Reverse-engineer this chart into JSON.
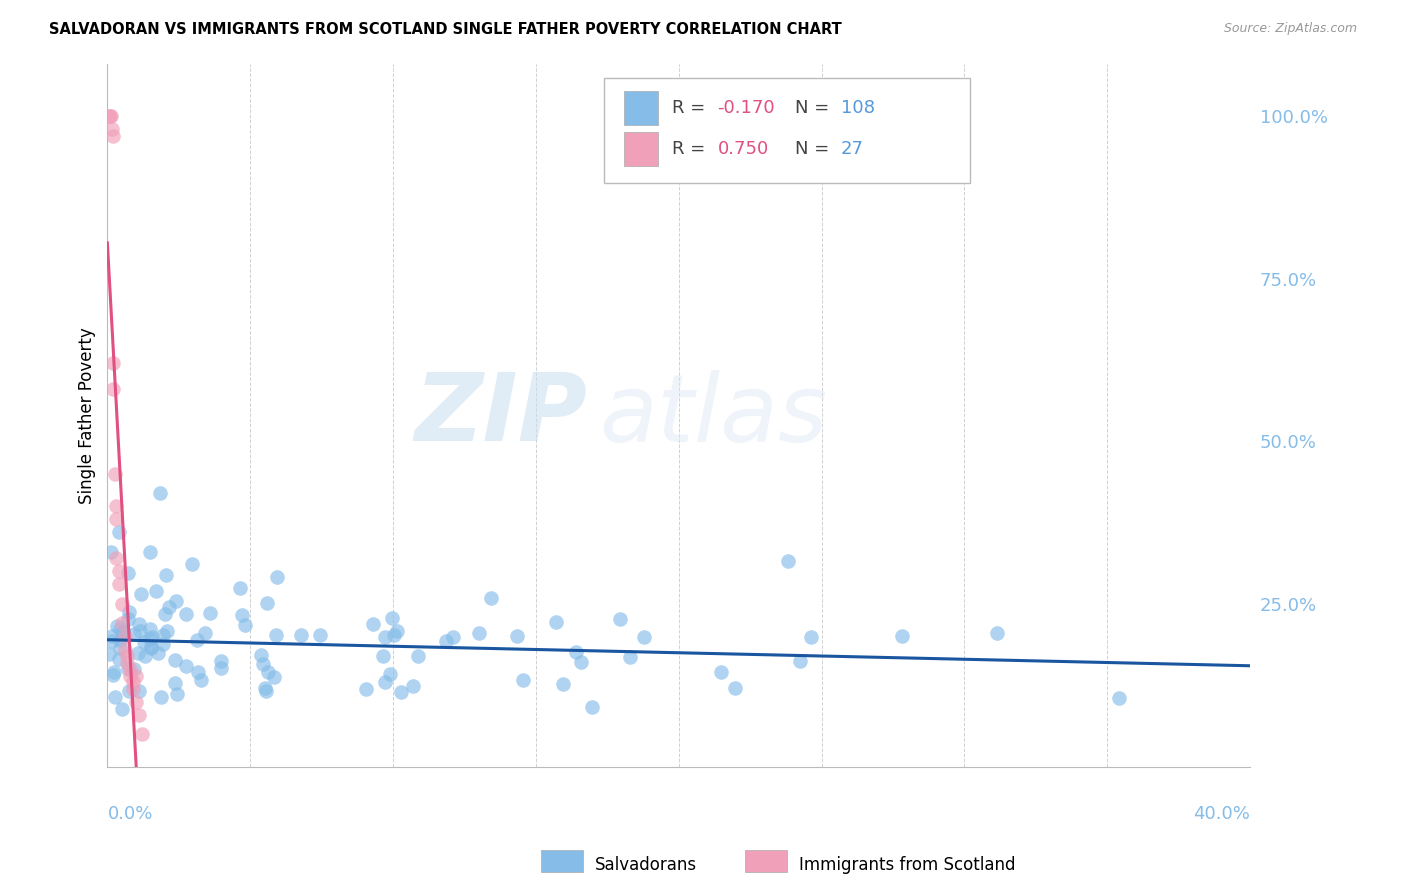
{
  "title": "SALVADORAN VS IMMIGRANTS FROM SCOTLAND SINGLE FATHER POVERTY CORRELATION CHART",
  "source": "Source: ZipAtlas.com",
  "ylabel": "Single Father Poverty",
  "yticks_right": [
    "100.0%",
    "75.0%",
    "50.0%",
    "25.0%"
  ],
  "yticks_right_vals": [
    1.0,
    0.75,
    0.5,
    0.25
  ],
  "blue_R": -0.17,
  "blue_N": 108,
  "pink_R": 0.75,
  "pink_N": 27,
  "blue_color": "#85bce8",
  "pink_color": "#f0a0b8",
  "blue_line_color": "#1a55a0",
  "pink_line_color": "#e05080",
  "legend_label_blue": "Salvadorans",
  "legend_label_pink": "Immigrants from Scotland",
  "watermark_zip": "ZIP",
  "watermark_atlas": "atlas",
  "xlim": [
    0,
    0.4
  ],
  "ylim": [
    0,
    1.08
  ],
  "xticklabels_show": [
    "0.0%",
    "40.0%"
  ],
  "legend_R_color": "#e05080",
  "legend_N_blue_color": "#5599dd",
  "legend_N_pink_color": "#5599dd"
}
